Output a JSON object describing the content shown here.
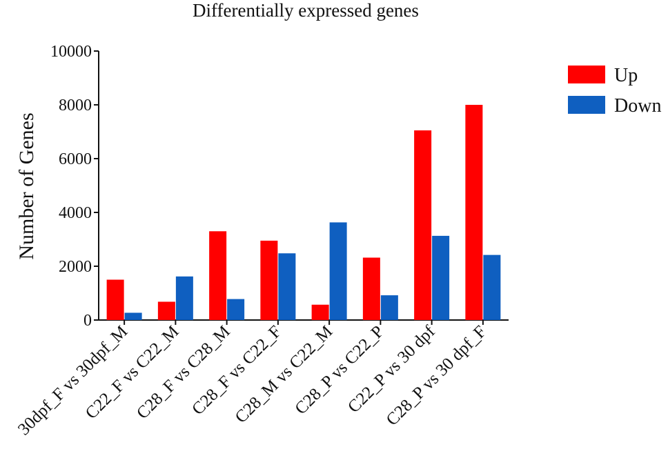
{
  "chart_data": {
    "type": "bar",
    "title": "Differentially expressed  genes",
    "xlabel": "",
    "ylabel": "Number of Genes",
    "ylim": [
      0,
      10000
    ],
    "yticks": [
      "0",
      "2000",
      "4000",
      "6000",
      "8000",
      "10000"
    ],
    "categories": [
      "30dpf_F vs 30dpf_M",
      "C22_F vs C22_M",
      "C28_F vs C28_M",
      "C28_F vs C22_F",
      "C28_M vs C22_M",
      "C28_P vs C22_P",
      "C22_P vs 30 dpf",
      "C28_P vs 30 dpf_F"
    ],
    "series": [
      {
        "name": "Up",
        "color": "#ff0000",
        "values": [
          1500,
          680,
          3300,
          2950,
          570,
          2320,
          7050,
          8000
        ]
      },
      {
        "name": "Down",
        "color": "#0f5fc0",
        "values": [
          270,
          1620,
          780,
          2480,
          3630,
          920,
          3130,
          2420
        ]
      }
    ],
    "legend_position": "top-right"
  }
}
